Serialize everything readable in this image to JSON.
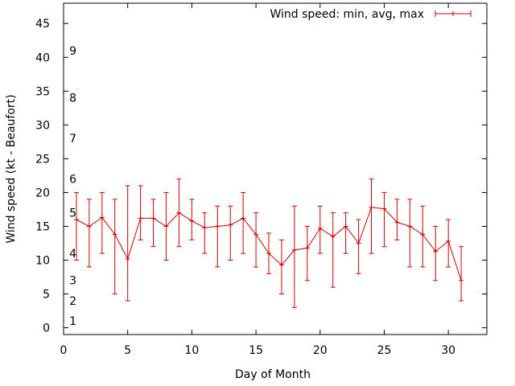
{
  "chart_data": {
    "type": "line",
    "title": "",
    "xlabel": "Day of Month",
    "ylabel": "Wind speed (kt - Beaufort)",
    "xlim": [
      0,
      33
    ],
    "ylim": [
      -1,
      48
    ],
    "xticks": [
      "0",
      "5",
      "10",
      "15",
      "20",
      "25",
      "30"
    ],
    "yticks": [
      "0",
      "5",
      "10",
      "15",
      "20",
      "25",
      "30",
      "35",
      "40",
      "45"
    ],
    "beaufort_labels": [
      {
        "label": "1",
        "y": 1
      },
      {
        "label": "2",
        "y": 4
      },
      {
        "label": "3",
        "y": 7
      },
      {
        "label": "4",
        "y": 11
      },
      {
        "label": "5",
        "y": 17
      },
      {
        "label": "6",
        "y": 22
      },
      {
        "label": "7",
        "y": 28
      },
      {
        "label": "8",
        "y": 34
      },
      {
        "label": "9",
        "y": 41
      }
    ],
    "legend_position": "top-right",
    "grid": false,
    "series": [
      {
        "name": "Wind speed: min, avg, max",
        "color": "#cc0000",
        "points": [
          {
            "x": 1,
            "y": 16.0,
            "min": 10,
            "max": 20
          },
          {
            "x": 2,
            "y": 15.0,
            "min": 9,
            "max": 19
          },
          {
            "x": 3,
            "y": 16.3,
            "min": 11,
            "max": 20
          },
          {
            "x": 4,
            "y": 13.8,
            "min": 5,
            "max": 19
          },
          {
            "x": 5,
            "y": 10.2,
            "min": 4,
            "max": 21
          },
          {
            "x": 6,
            "y": 16.2,
            "min": 13,
            "max": 21
          },
          {
            "x": 7,
            "y": 16.2,
            "min": 12,
            "max": 19
          },
          {
            "x": 8,
            "y": 15.0,
            "min": 10,
            "max": 20
          },
          {
            "x": 9,
            "y": 17.0,
            "min": 12,
            "max": 22
          },
          {
            "x": 10,
            "y": 15.8,
            "min": 13,
            "max": 19
          },
          {
            "x": 11,
            "y": 14.8,
            "min": 11,
            "max": 17
          },
          {
            "x": 12,
            "y": 15.0,
            "min": 9,
            "max": 18
          },
          {
            "x": 13,
            "y": 15.2,
            "min": 10,
            "max": 18
          },
          {
            "x": 14,
            "y": 16.2,
            "min": 11,
            "max": 20
          },
          {
            "x": 15,
            "y": 13.8,
            "min": 9,
            "max": 17
          },
          {
            "x": 16,
            "y": 11.0,
            "min": 8,
            "max": 14
          },
          {
            "x": 17,
            "y": 9.3,
            "min": 5,
            "max": 13
          },
          {
            "x": 18,
            "y": 11.5,
            "min": 3,
            "max": 18
          },
          {
            "x": 19,
            "y": 11.8,
            "min": 7,
            "max": 15
          },
          {
            "x": 20,
            "y": 14.7,
            "min": 11,
            "max": 18
          },
          {
            "x": 21,
            "y": 13.5,
            "min": 6,
            "max": 17
          },
          {
            "x": 22,
            "y": 15.0,
            "min": 11,
            "max": 17
          },
          {
            "x": 23,
            "y": 12.5,
            "min": 8,
            "max": 16
          },
          {
            "x": 24,
            "y": 17.8,
            "min": 11,
            "max": 22
          },
          {
            "x": 25,
            "y": 17.6,
            "min": 12,
            "max": 20
          },
          {
            "x": 26,
            "y": 15.6,
            "min": 13,
            "max": 19
          },
          {
            "x": 27,
            "y": 15.0,
            "min": 9,
            "max": 19
          },
          {
            "x": 28,
            "y": 13.8,
            "min": 9,
            "max": 18
          },
          {
            "x": 29,
            "y": 11.3,
            "min": 7,
            "max": 15
          },
          {
            "x": 30,
            "y": 12.8,
            "min": 9,
            "max": 16
          },
          {
            "x": 31,
            "y": 7.0,
            "min": 4,
            "max": 12
          }
        ]
      }
    ]
  }
}
